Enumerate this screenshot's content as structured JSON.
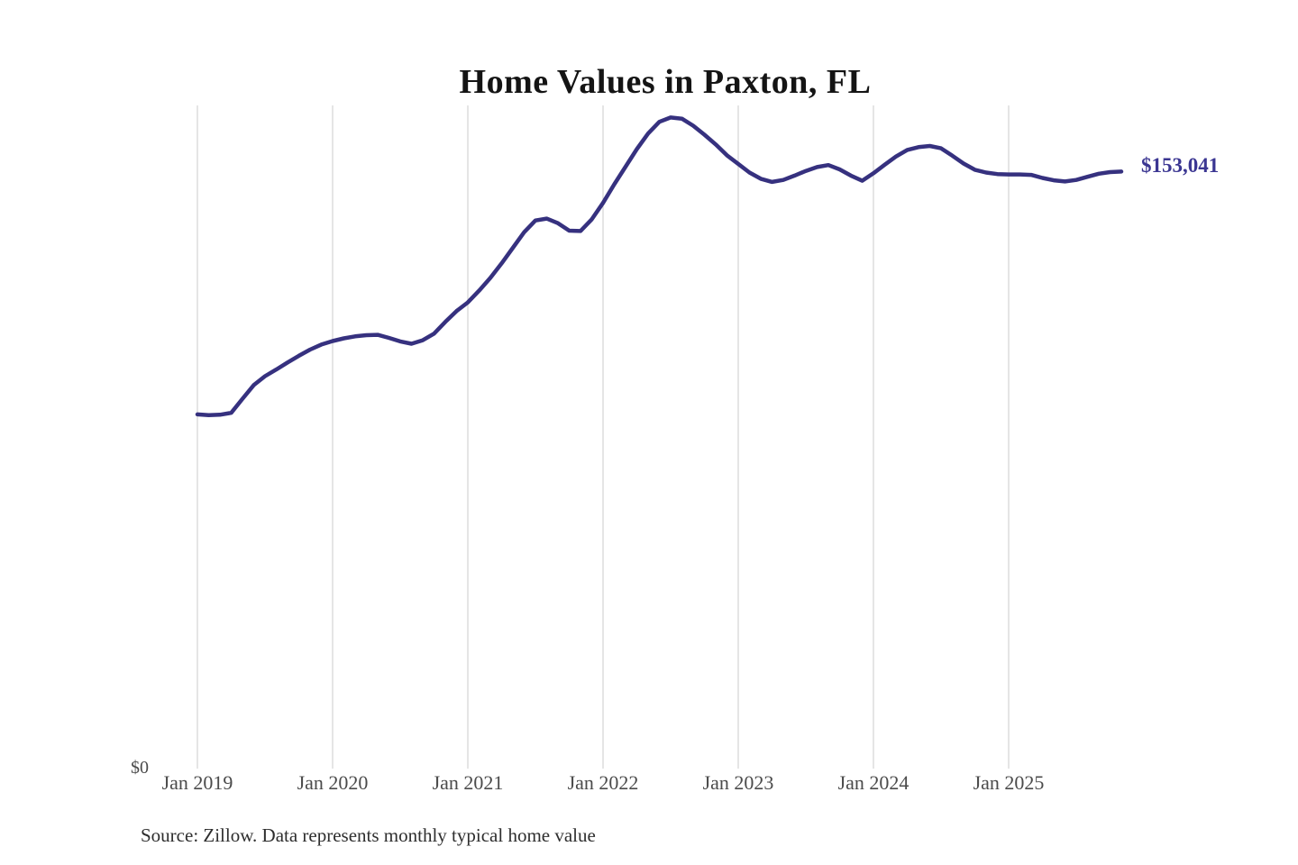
{
  "title": "Home Values in Paxton, FL",
  "y_axis": {
    "zero_label": "$0"
  },
  "end_value_label": "$153,041",
  "footer": {
    "source": "Source: Zillow. Data represents monthly typical home value"
  },
  "colors": {
    "line": "#36317f",
    "end_label": "#3b3692",
    "gridline": "#cbcbcb",
    "title": "#141414",
    "axis_text": "#4b4b4b",
    "source_text": "#2e2e2e"
  },
  "chart_data": {
    "type": "line",
    "title": "Home Values in Paxton, FL",
    "xlabel": "",
    "ylabel": "",
    "ylim": [
      0,
      170000
    ],
    "grid": "vertical-yearly",
    "legend": "none",
    "end_label": "$153,041",
    "x_axis_ticks": [
      "Jan 2019",
      "Jan 2020",
      "Jan 2021",
      "Jan 2022",
      "Jan 2023",
      "Jan 2024",
      "Jan 2025"
    ],
    "x": [
      "2019-01",
      "2019-02",
      "2019-03",
      "2019-04",
      "2019-05",
      "2019-06",
      "2019-07",
      "2019-08",
      "2019-09",
      "2019-10",
      "2019-11",
      "2019-12",
      "2020-01",
      "2020-02",
      "2020-03",
      "2020-04",
      "2020-05",
      "2020-06",
      "2020-07",
      "2020-08",
      "2020-09",
      "2020-10",
      "2020-11",
      "2020-12",
      "2021-01",
      "2021-02",
      "2021-03",
      "2021-04",
      "2021-05",
      "2021-06",
      "2021-07",
      "2021-08",
      "2021-09",
      "2021-10",
      "2021-11",
      "2021-12",
      "2022-01",
      "2022-02",
      "2022-03",
      "2022-04",
      "2022-05",
      "2022-06",
      "2022-07",
      "2022-08",
      "2022-09",
      "2022-10",
      "2022-11",
      "2022-12",
      "2023-01",
      "2023-02",
      "2023-03",
      "2023-04",
      "2023-05",
      "2023-06",
      "2023-07",
      "2023-08",
      "2023-09",
      "2023-10",
      "2023-11",
      "2023-12",
      "2024-01",
      "2024-02",
      "2024-03",
      "2024-04",
      "2024-05",
      "2024-06",
      "2024-07",
      "2024-08",
      "2024-09",
      "2024-10",
      "2024-11",
      "2024-12",
      "2025-01",
      "2025-02",
      "2025-03",
      "2025-04",
      "2025-05",
      "2025-06",
      "2025-07",
      "2025-08",
      "2025-09",
      "2025-10",
      "2025-11"
    ],
    "values": [
      90800,
      90600,
      90700,
      91200,
      94800,
      98300,
      100600,
      102300,
      104100,
      105800,
      107400,
      108700,
      109600,
      110300,
      110800,
      111100,
      111200,
      110400,
      109500,
      108900,
      109800,
      111500,
      114500,
      117300,
      119500,
      122500,
      125800,
      129500,
      133500,
      137500,
      140500,
      141000,
      139800,
      137900,
      137800,
      140800,
      145000,
      149800,
      154300,
      158800,
      162800,
      165800,
      166900,
      166600,
      164800,
      162500,
      160000,
      157200,
      155000,
      152800,
      151200,
      150400,
      150900,
      152000,
      153200,
      154200,
      154700,
      153600,
      152000,
      150700,
      152600,
      154800,
      156900,
      158600,
      159300,
      159600,
      159000,
      157100,
      155100,
      153500,
      152800,
      152400,
      152300,
      152300,
      152200,
      151400,
      150800,
      150500,
      150900,
      151700,
      152500,
      152900,
      153041
    ]
  }
}
